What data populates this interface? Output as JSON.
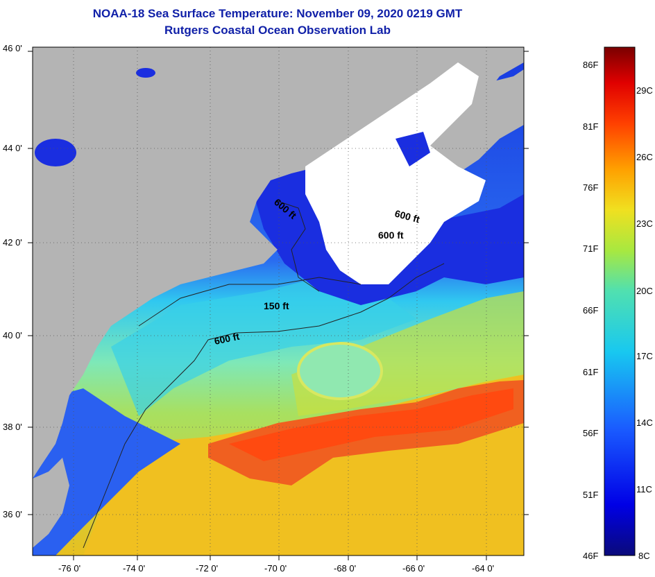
{
  "title": {
    "line1": "NOAA-18 Sea Surface Temperature:  November 09, 2020 0219 GMT",
    "line2": "Rutgers Coastal Ocean Observation Lab"
  },
  "axes": {
    "lat_ticks": [
      "46 0'",
      "44 0'",
      "42 0'",
      "40 0'",
      "38 0'",
      "36 0'"
    ],
    "lon_ticks": [
      "-76 0'",
      "-74 0'",
      "-72 0'",
      "-70 0'",
      "-68 0'",
      "-66 0'",
      "-64 0'"
    ]
  },
  "contour_labels": [
    "600 ft",
    "600 ft",
    "600 ft",
    "150 ft",
    "600 ft"
  ],
  "colorbar": {
    "fahrenheit": [
      "86F",
      "81F",
      "76F",
      "71F",
      "66F",
      "61F",
      "56F",
      "51F",
      "46F"
    ],
    "celsius": [
      "29C",
      "26C",
      "23C",
      "20C",
      "17C",
      "14C",
      "11C",
      "8C"
    ]
  },
  "colors": {
    "land": "#b4b4b4",
    "cloud": "#ffffff",
    "title": "#1020a8"
  }
}
